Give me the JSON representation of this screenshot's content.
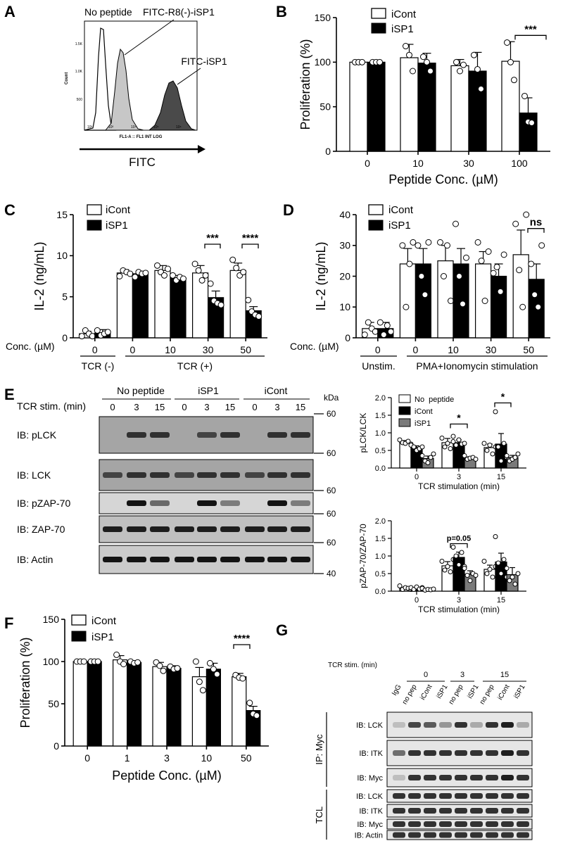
{
  "panels": {
    "A": {
      "letter": "A",
      "legend": [
        "No peptide",
        "FITC-R8(-)-iSP1",
        "FITC-iSP1"
      ],
      "y_label": "Count",
      "y_ticks": [
        "1.5K",
        "1.0K",
        "500"
      ],
      "x_ticks": [
        "10²",
        "10³",
        "10⁴",
        "10⁵",
        "10⁶"
      ],
      "x_small_label": "FL1-A :: FL1 INT LOG",
      "x_title": "FITC"
    },
    "B": {
      "letter": "B",
      "legend": [
        "iCont",
        "iSP1"
      ],
      "sig": [
        "***"
      ]
    },
    "C": {
      "letter": "C",
      "legend": [
        "iCont",
        "iSP1"
      ],
      "conc_label": "Conc. (µM)",
      "groups": [
        "TCR (-)",
        "TCR (+)"
      ],
      "sig": [
        "***",
        "****"
      ]
    },
    "D": {
      "letter": "D",
      "legend": [
        "iCont",
        "iSP1"
      ],
      "conc_label": "Conc. (µM)",
      "groups": [
        "Unstim.",
        "PMA+Ionomycin stimulation"
      ],
      "sig": [
        "ns"
      ]
    },
    "E": {
      "letter": "E",
      "header": {
        "groups": [
          "No peptide",
          "iSP1",
          "iCont"
        ],
        "stim_label": "TCR stim. (min)",
        "times": [
          "0",
          "3",
          "15",
          "0",
          "3",
          "15",
          "0",
          "3",
          "15"
        ],
        "kda_label": "kDa"
      },
      "blots": [
        {
          "label": "IB: pLCK",
          "kda": "60"
        },
        {
          "label": "IB: LCK",
          "kda": "60"
        },
        {
          "label": "IB: pZAP-70",
          "kda": "60"
        },
        {
          "label": "IB: ZAP-70",
          "kda": "60"
        },
        {
          "label": "IB: Actin",
          "kda": "40"
        }
      ],
      "top_kda": "60",
      "sig_top": [
        "*",
        "*"
      ],
      "sig_bottom": [
        "p=0.05"
      ]
    },
    "F": {
      "letter": "F",
      "legend": [
        "iCont",
        "iSP1"
      ],
      "sig": [
        "****"
      ]
    },
    "G": {
      "letter": "G",
      "stim_label": "TCR stim. (min)",
      "times": [
        "0",
        "3",
        "15"
      ],
      "lanes": [
        "IgG",
        "no pep",
        "iCont",
        "iSP1",
        "no pep",
        "iSP1",
        "no pep",
        "iCont",
        "iSP1"
      ],
      "ip_group": "IP: Myc",
      "tcl_group": "TCL",
      "ip_blots": [
        "IB: LCK",
        "IB: ITK",
        "IB: Myc"
      ],
      "tcl_blots": [
        "IB: LCK",
        "IB: ITK",
        "IB: Myc",
        "IB: Actin"
      ]
    }
  },
  "chart_data": [
    {
      "panel": "B",
      "type": "bar",
      "xlabel": "Peptide Conc. (µM)",
      "ylabel": "Proliferation (%)",
      "categories": [
        "0",
        "10",
        "30",
        "100"
      ],
      "ylim": [
        0,
        150
      ],
      "yticks": [
        0,
        50,
        100,
        150
      ],
      "series": [
        {
          "name": "iCont",
          "values": [
            100,
            105,
            96,
            101
          ],
          "errors": [
            0,
            15,
            7,
            22
          ],
          "points": [
            [
              100,
              100,
              100
            ],
            [
              118,
              108,
              90
            ],
            [
              100,
              90,
              97
            ],
            [
              122,
              100,
              80
            ]
          ]
        },
        {
          "name": "iSP1",
          "values": [
            100,
            99,
            90,
            43
          ],
          "errors": [
            0,
            11,
            21,
            17
          ],
          "points": [
            [
              100,
              100,
              100
            ],
            [
              106,
              100,
              90
            ],
            [
              108,
              92,
              70
            ],
            [
              62,
              33,
              32
            ]
          ]
        }
      ]
    },
    {
      "panel": "C",
      "type": "bar",
      "ylabel": "IL-2 (ng/mL)",
      "categories": [
        "0",
        "0",
        "10",
        "30",
        "50"
      ],
      "ylim": [
        0,
        15
      ],
      "yticks": [
        0,
        5,
        10,
        15
      ],
      "series": [
        {
          "name": "iCont",
          "values": [
            0.5,
            7.9,
            8.2,
            7.9,
            8.2
          ],
          "errors": [
            0.3,
            0.4,
            0.6,
            0.9,
            0.9
          ],
          "points": [
            [
              0.2,
              0.9,
              0.5,
              0.2
            ],
            [
              7.5,
              8.2,
              8.0,
              7.8
            ],
            [
              8.8,
              8.0,
              7.6,
              8.4
            ],
            [
              9.0,
              8.2,
              7.0,
              7.6
            ],
            [
              9.5,
              8.5,
              7.6,
              8.0
            ]
          ]
        },
        {
          "name": "iSP1",
          "values": [
            0.6,
            7.8,
            7.3,
            4.9,
            3.3
          ],
          "errors": [
            0.4,
            0.3,
            0.3,
            0.8,
            0.5
          ],
          "points": [
            [
              0.9,
              0.3,
              0.5,
              0.7
            ],
            [
              7.4,
              8.0,
              7.8,
              7.9
            ],
            [
              7.6,
              7.0,
              7.4,
              7.2
            ],
            [
              6.6,
              4.5,
              4.2,
              4.0
            ],
            [
              4.6,
              3.2,
              2.8,
              2.6
            ]
          ]
        }
      ]
    },
    {
      "panel": "D",
      "type": "bar",
      "ylabel": "IL-2 (ng/mL)",
      "categories": [
        "0",
        "0",
        "10",
        "30",
        "50"
      ],
      "ylim": [
        0,
        40
      ],
      "yticks": [
        0,
        10,
        20,
        30,
        40
      ],
      "series": [
        {
          "name": "iCont",
          "values": [
            3,
            24,
            25,
            24,
            27
          ],
          "errors": [
            2,
            5,
            5,
            4,
            8
          ],
          "points": [
            [
              1,
              5,
              3,
              2
            ],
            [
              30,
              10,
              24,
              31
            ],
            [
              31,
              20,
              30,
              12
            ],
            [
              31,
              25,
              12,
              28
            ],
            [
              37,
              22,
              10,
              40
            ]
          ]
        },
        {
          "name": "iSP1",
          "values": [
            3,
            24,
            24,
            20,
            19
          ],
          "errors": [
            2,
            5,
            5,
            4,
            5
          ],
          "points": [
            [
              5,
              1,
              4,
              2
            ],
            [
              30,
              20,
              14,
              31
            ],
            [
              37,
              20,
              11,
              26
            ],
            [
              21,
              23,
              15,
              27
            ],
            [
              24,
              14,
              10,
              30
            ]
          ]
        }
      ]
    },
    {
      "panel": "E-top",
      "type": "bar",
      "xlabel": "TCR stimulation (min)",
      "ylabel": "pLCK/LCK",
      "categories": [
        "0",
        "3",
        "15"
      ],
      "ylim": [
        0,
        2.0
      ],
      "yticks": [
        "0.0",
        "0.5",
        "1.0",
        "1.5",
        "2.0"
      ],
      "series": [
        {
          "name": "No  peptide",
          "values": [
            0.73,
            0.72,
            0.58
          ],
          "errors": [
            0.05,
            0.12,
            0.1
          ],
          "points": [
            [
              0.8,
              0.72,
              0.7,
              0.76,
              0.68
            ],
            [
              0.85,
              0.6,
              0.7,
              0.55,
              0.9
            ],
            [
              0.7,
              0.5,
              0.65,
              0.4,
              0.6
            ]
          ]
        },
        {
          "name": "iCont",
          "values": [
            0.58,
            0.72,
            0.68
          ],
          "errors": [
            0.05,
            0.08,
            0.3
          ],
          "points": [
            [
              0.65,
              0.6,
              0.5,
              0.55,
              0.6
            ],
            [
              0.75,
              0.65,
              0.8,
              0.68,
              0.7
            ],
            [
              1.6,
              0.6,
              0.2,
              0.7,
              0.3
            ]
          ]
        },
        {
          "name": "iSP1",
          "values": [
            0.27,
            0.28,
            0.3
          ],
          "errors": [
            0.07,
            0.04,
            0.06
          ],
          "points": [
            [
              0.35,
              0.2,
              0.15,
              0.3,
              0.4
            ],
            [
              0.35,
              0.25,
              0.28,
              0.3,
              0.25
            ],
            [
              0.35,
              0.2,
              0.25,
              0.3,
              0.4
            ]
          ]
        }
      ]
    },
    {
      "panel": "E-bottom",
      "type": "bar",
      "xlabel": "TCR stimulation (min)",
      "ylabel": "pZAP-70/ZAP-70",
      "categories": [
        "0",
        "3",
        "15"
      ],
      "ylim": [
        0,
        2.0
      ],
      "yticks": [
        "0.0",
        "0.5",
        "1.0",
        "1.5",
        "2.0"
      ],
      "series": [
        {
          "name": "No  peptide",
          "values": [
            0.09,
            0.72,
            0.62
          ],
          "errors": [
            0.03,
            0.12,
            0.12
          ],
          "points": [
            [
              0.15,
              0.05,
              0.1,
              0.08,
              0.05
            ],
            [
              0.85,
              0.6,
              0.7,
              0.55,
              0.9
            ],
            [
              0.85,
              0.5,
              0.62,
              0.4,
              0.7
            ]
          ]
        },
        {
          "name": "iCont",
          "values": [
            0.08,
            0.96,
            0.83
          ],
          "errors": [
            0.03,
            0.15,
            0.25
          ],
          "points": [
            [
              0.1,
              0.05,
              0.12,
              0.06,
              0.1
            ],
            [
              1.25,
              1.0,
              0.75,
              1.1,
              0.7
            ],
            [
              1.55,
              0.8,
              0.5,
              0.9,
              0.4
            ]
          ]
        },
        {
          "name": "iSP1",
          "values": [
            0.05,
            0.48,
            0.47
          ],
          "errors": [
            0.02,
            0.1,
            0.2
          ],
          "points": [
            [
              0.08,
              0.03,
              0.05,
              0.04,
              0.06
            ],
            [
              0.65,
              0.45,
              0.3,
              0.5,
              0.45
            ],
            [
              0.65,
              0.3,
              0.4,
              0.2,
              0.5
            ]
          ]
        }
      ]
    },
    {
      "panel": "F",
      "type": "bar",
      "xlabel": "Peptide Conc. (µM)",
      "ylabel": "Proliferation (%)",
      "categories": [
        "0",
        "1",
        "3",
        "10",
        "50"
      ],
      "ylim": [
        0,
        150
      ],
      "yticks": [
        0,
        50,
        100,
        150
      ],
      "series": [
        {
          "name": "iCont",
          "values": [
            100,
            102,
            94,
            82,
            82
          ],
          "errors": [
            0,
            5,
            5,
            11,
            4
          ],
          "points": [
            [
              100,
              100,
              100
            ],
            [
              108,
              100,
              97
            ],
            [
              99,
              95,
              89
            ],
            [
              100,
              76,
              66
            ],
            [
              84,
              81,
              80
            ]
          ]
        },
        {
          "name": "iSP1",
          "values": [
            100,
            99,
            92,
            91,
            42
          ],
          "errors": [
            0,
            2,
            3,
            7,
            5
          ],
          "points": [
            [
              100,
              100,
              100
            ],
            [
              100,
              98,
              99
            ],
            [
              94,
              91,
              92
            ],
            [
              98,
              91,
              85
            ],
            [
              51,
              38,
              36
            ]
          ]
        }
      ]
    }
  ]
}
